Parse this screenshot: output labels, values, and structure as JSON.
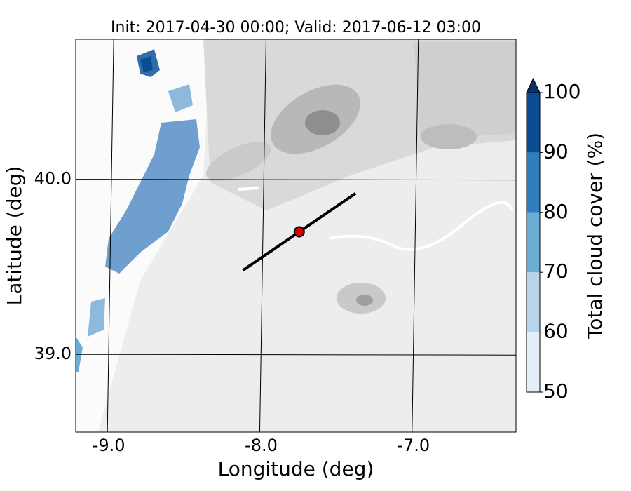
{
  "map": {
    "title": "Init: 2017-04-30 00:00; Valid: 2017-06-12 03:00",
    "xlabel": "Longitude (deg)",
    "ylabel": "Latitude (deg)",
    "xlim": [
      -9.217,
      -6.327
    ],
    "ylim": [
      38.556,
      40.8
    ],
    "xticks": [
      {
        "value": -9,
        "label": "-9.0"
      },
      {
        "value": -8,
        "label": "-8.0"
      },
      {
        "value": -7,
        "label": "-7.0"
      }
    ],
    "yticks": [
      {
        "value": 39,
        "label": "39.0"
      },
      {
        "value": 40,
        "label": "40.0"
      }
    ],
    "section": {
      "lon": [
        -8.12,
        -7.38
      ],
      "lat": [
        39.48,
        39.92
      ]
    },
    "point": {
      "lon": -7.75,
      "lat": 39.7,
      "color": "#e00000"
    },
    "colorbar": {
      "label": "Total cloud cover (%)",
      "ticks": [
        50,
        60,
        70,
        80,
        90,
        100
      ],
      "colors": [
        "#e3eef9",
        "#b7d4ea",
        "#6aaed6",
        "#2f7ebc",
        "#0b4d94"
      ],
      "extend_color": "#08306b"
    }
  }
}
